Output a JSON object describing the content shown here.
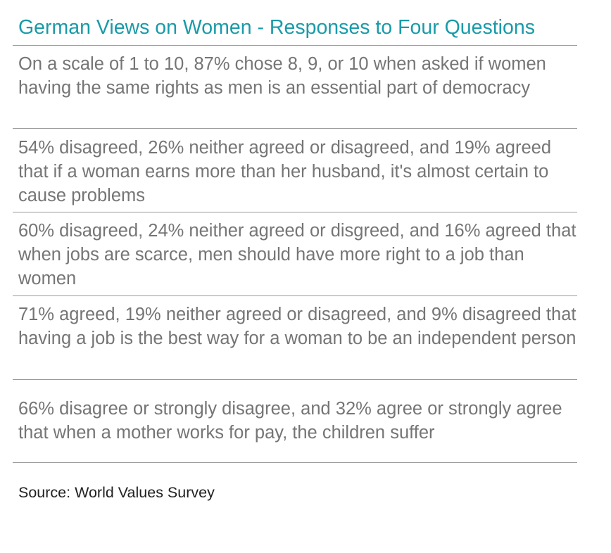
{
  "title": "German Views on Women - Responses to Four Questions",
  "rows": [
    "On a scale of 1 to 10, 87% chose 8, 9, or 10 when asked if women having the same rights as men is an essential part of democracy",
    "54% disagreed, 26% neither agreed or disagreed, and 19% agreed that if a woman earns more than her husband, it's almost certain to cause problems",
    "60% disagreed, 24% neither agreed or disgreed, and 16% agreed that when jobs are scarce, men should have more right to a job than women",
    "71% agreed, 19% neither agreed or disagreed, and 9% disagreed that having a job is the best way for a woman to be an independent person",
    "66% disagree or strongly disagree, and 32% agree or strongly agree that when a mother works for pay, the children suffer"
  ],
  "source": "Source: World Values Survey",
  "colors": {
    "title": "#1a9aa8",
    "row_text": "#757575",
    "divider": "#9a9a9a",
    "source_text": "#222222"
  }
}
